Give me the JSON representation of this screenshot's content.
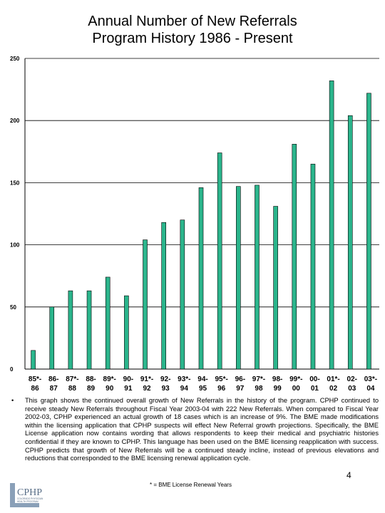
{
  "chart_data": {
    "type": "bar",
    "title": [
      "Annual Number of New Referrals",
      "Program History  1986 - Present"
    ],
    "categories": [
      [
        "85*-",
        "86"
      ],
      [
        "86-",
        "87"
      ],
      [
        "87*-",
        "88"
      ],
      [
        "88-",
        "89"
      ],
      [
        "89*-",
        "90"
      ],
      [
        "90-",
        "91"
      ],
      [
        "91*-",
        "92"
      ],
      [
        "92-",
        "93"
      ],
      [
        "93*-",
        "94"
      ],
      [
        "94-",
        "95"
      ],
      [
        "95*-",
        "96"
      ],
      [
        "96-",
        "97"
      ],
      [
        "97*-",
        "98"
      ],
      [
        "98-",
        "99"
      ],
      [
        "99*-",
        "00"
      ],
      [
        "00-",
        "01"
      ],
      [
        "01*-",
        "02"
      ],
      [
        "02-",
        "03"
      ],
      [
        "03*-",
        "04"
      ]
    ],
    "values": [
      15,
      50,
      63,
      63,
      74,
      59,
      104,
      118,
      120,
      146,
      174,
      147,
      148,
      131,
      181,
      165,
      232,
      204,
      222
    ],
    "yticks": [
      0,
      50,
      100,
      150,
      200,
      250
    ],
    "ylim": [
      0,
      250
    ],
    "xlabel": "",
    "ylabel": "",
    "grid": true,
    "bar_color": "#2bb58c",
    "bar_edge_color": "#000000"
  },
  "notes": {
    "bullet": "•",
    "text": "This graph shows the continued overall growth of New Referrals in the history of the program. CPHP continued to receive steady New Referrals throughout Fiscal Year 2003-04 with 222 New Referrals. When compared to Fiscal Year 2002-03, CPHP experienced an actual growth of 18 cases which is an increase of 9%. The BME made modifications within the licensing application that CPHP suspects will effect New Referral growth projections. Specifically, the BME License application now contains wording that allows respondents to keep their medical and psychiatric histories confidential if they are known to CPHP. This language has been used on the BME licensing reapplication with success. CPHP predicts that growth of New Referrals will be a continued steady incline, instead of previous elevations and reductions that corresponded to the BME licensing renewal application cycle.",
    "page_number": "4",
    "footnote": "* = BME License Renewal Years"
  },
  "logo": {
    "name": "CPHP",
    "tagline": [
      "COLORADO PHYSICIAN",
      "HEALTH PROGRAM"
    ]
  }
}
